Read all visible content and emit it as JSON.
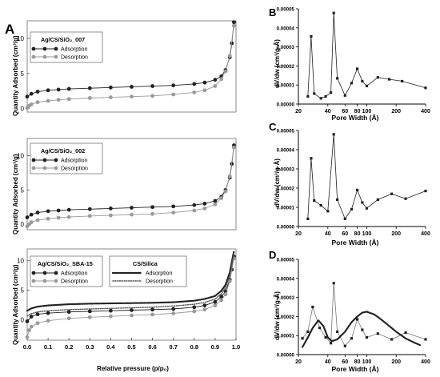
{
  "figure": {
    "panel_labels": {
      "A": "A",
      "B": "B",
      "C": "C",
      "D": "D"
    },
    "colors": {
      "adsorption": "#222222",
      "desorption": "#9a9a9a",
      "axis": "#000000",
      "frame": "#888888"
    }
  },
  "chart_data": [
    {
      "id": "A1",
      "type": "line",
      "ylabel": "Quantity Adsorbed (cm³/g)",
      "xlabel": "",
      "xlim": [
        0,
        1
      ],
      "ylim": [
        -0.5,
        12.5
      ],
      "yticks": [
        0,
        5,
        10
      ],
      "xticks": [],
      "legend": {
        "title": "Ag/CS/SiO₂_007",
        "placement": "top-left"
      },
      "series": [
        {
          "name": "Adsorption",
          "style": "filled",
          "x": [
            0.0,
            0.02,
            0.05,
            0.1,
            0.15,
            0.2,
            0.3,
            0.4,
            0.5,
            0.6,
            0.7,
            0.8,
            0.85,
            0.9,
            0.93,
            0.95,
            0.97,
            0.98,
            0.99
          ],
          "y": [
            1.7,
            2.1,
            2.4,
            2.6,
            2.7,
            2.8,
            2.9,
            3.0,
            3.1,
            3.2,
            3.3,
            3.5,
            3.7,
            4.1,
            4.6,
            5.5,
            7.3,
            9.3,
            12.3
          ]
        },
        {
          "name": "Desorption",
          "style": "gray",
          "x": [
            0.0,
            0.01,
            0.02,
            0.05,
            0.1,
            0.15,
            0.2,
            0.3,
            0.4,
            0.5,
            0.6,
            0.7,
            0.8,
            0.85,
            0.9,
            0.93,
            0.95,
            0.97,
            0.99
          ],
          "y": [
            0.1,
            0.4,
            0.6,
            0.9,
            1.1,
            1.25,
            1.35,
            1.5,
            1.6,
            1.7,
            1.8,
            2.0,
            2.3,
            2.6,
            3.2,
            4.2,
            5.3,
            7.5,
            11.8
          ]
        }
      ]
    },
    {
      "id": "A2",
      "type": "line",
      "ylabel": "Quantity Adsorbed (cm³/g)",
      "xlabel": "",
      "xlim": [
        0,
        1
      ],
      "ylim": [
        -0.8,
        12.5
      ],
      "yticks": [
        0,
        5,
        10
      ],
      "xticks": [],
      "legend": {
        "title": "Ag/CS/SiO₂_002",
        "placement": "top-left"
      },
      "series": [
        {
          "name": "Adsorption",
          "style": "filled",
          "x": [
            0.0,
            0.02,
            0.05,
            0.1,
            0.15,
            0.2,
            0.3,
            0.4,
            0.5,
            0.6,
            0.7,
            0.8,
            0.85,
            0.9,
            0.93,
            0.95,
            0.97,
            0.98,
            0.99
          ],
          "y": [
            1.0,
            1.4,
            1.7,
            1.9,
            2.0,
            2.1,
            2.2,
            2.3,
            2.4,
            2.5,
            2.6,
            2.8,
            3.0,
            3.4,
            4.0,
            5.0,
            6.8,
            8.8,
            11.5
          ]
        },
        {
          "name": "Desorption",
          "style": "gray",
          "x": [
            0.0,
            0.01,
            0.02,
            0.05,
            0.1,
            0.15,
            0.2,
            0.3,
            0.4,
            0.5,
            0.6,
            0.7,
            0.8,
            0.85,
            0.9,
            0.93,
            0.95,
            0.97,
            0.99
          ],
          "y": [
            -0.3,
            0.0,
            0.3,
            0.6,
            0.8,
            0.95,
            1.05,
            1.2,
            1.3,
            1.4,
            1.5,
            1.7,
            2.0,
            2.3,
            2.9,
            3.8,
            4.8,
            7.0,
            11.2
          ]
        }
      ]
    },
    {
      "id": "A3",
      "type": "line",
      "ylabel": "Quantity Adsorbed (cm³/g)",
      "xlabel": "Relative pressure (p/p₀)",
      "xlim": [
        0,
        1.0
      ],
      "ylim": [
        -3.5,
        12
      ],
      "yticks": [
        0,
        5,
        10
      ],
      "xticks": [
        "0.0",
        "0.1",
        "0.2",
        "0.3",
        "0.4",
        "0.5",
        "0.6",
        "0.7",
        "0.8",
        "0.9",
        "1.0"
      ],
      "legends": [
        {
          "title": "Ag/CS/SiO₂_SBA-15",
          "entries": [
            "Adsorption",
            "Desorption"
          ],
          "placement": "bottom-left"
        },
        {
          "title": "CS/Silica",
          "entries": [
            "Adsorption",
            "Desorption"
          ],
          "placement": "bottom-center"
        }
      ],
      "series": [
        {
          "name": "Adsorption",
          "group": "Ag/CS/SiO₂_SBA-15",
          "style": "filled",
          "x": [
            0.0,
            0.02,
            0.05,
            0.1,
            0.2,
            0.3,
            0.4,
            0.5,
            0.6,
            0.7,
            0.8,
            0.85,
            0.9,
            0.93,
            0.95,
            0.97,
            0.98,
            0.99
          ],
          "y": [
            -0.3,
            0.5,
            0.9,
            1.1,
            1.3,
            1.4,
            1.5,
            1.6,
            1.7,
            1.8,
            2.1,
            2.4,
            3.0,
            3.9,
            4.8,
            6.8,
            8.5,
            10.7
          ]
        },
        {
          "name": "Desorption",
          "group": "Ag/CS/SiO₂_SBA-15",
          "style": "gray",
          "x": [
            0.0,
            0.01,
            0.02,
            0.05,
            0.1,
            0.2,
            0.3,
            0.4,
            0.5,
            0.6,
            0.7,
            0.8,
            0.85,
            0.9,
            0.93,
            0.95,
            0.97,
            0.99
          ],
          "y": [
            -3.0,
            -1.8,
            -1.2,
            -0.6,
            -0.2,
            0.2,
            0.4,
            0.55,
            0.7,
            0.85,
            1.05,
            1.4,
            1.7,
            2.4,
            3.3,
            4.3,
            6.5,
            10.4
          ]
        },
        {
          "name": "Adsorption",
          "group": "CS/Silica",
          "style": "dotted-dense",
          "x": [
            0.0,
            0.02,
            0.05,
            0.1,
            0.2,
            0.3,
            0.4,
            0.5,
            0.6,
            0.7,
            0.8,
            0.85,
            0.9,
            0.93,
            0.95,
            0.97,
            0.98,
            0.99
          ],
          "y": [
            1.5,
            1.9,
            2.2,
            2.4,
            2.6,
            2.7,
            2.75,
            2.8,
            2.85,
            2.95,
            3.2,
            3.5,
            4.0,
            4.9,
            5.9,
            8.0,
            9.8,
            11.6
          ]
        },
        {
          "name": "Desorption",
          "group": "CS/Silica",
          "style": "dotted-light",
          "x": [
            0.0,
            0.02,
            0.05,
            0.1,
            0.2,
            0.3,
            0.4,
            0.5,
            0.6,
            0.7,
            0.8,
            0.85,
            0.9,
            0.93,
            0.95,
            0.97,
            0.99
          ],
          "y": [
            0.6,
            1.0,
            1.3,
            1.5,
            1.7,
            1.8,
            1.9,
            2.0,
            2.1,
            2.3,
            2.6,
            2.9,
            3.5,
            4.4,
            5.4,
            7.5,
            11.3
          ]
        }
      ]
    },
    {
      "id": "B",
      "type": "line",
      "ylabel": "dV/dw (cm³/g·Å)",
      "xlabel": "Pore Width (Å)",
      "xscale": "log",
      "xlim": [
        20,
        400
      ],
      "ylim": [
        0,
        5e-05
      ],
      "yticks": [
        "0.00000",
        "0.00001",
        "0.00002",
        "0.00003",
        "0.00004",
        "0.00005"
      ],
      "xticks": [
        "20",
        "40",
        "60",
        "80",
        "100",
        "200",
        "400"
      ],
      "series": [
        {
          "name": "",
          "style": "black-markers",
          "x": [
            25,
            27,
            29,
            34,
            38,
            43,
            46,
            50,
            60,
            70,
            80,
            90,
            100,
            130,
            170,
            230,
            400
          ],
          "y": [
            4e-06,
            3.55e-05,
            5.5e-06,
            3e-06,
            4e-06,
            6e-06,
            4.78e-05,
            1.35e-05,
            4.5e-06,
            1.1e-05,
            1.85e-05,
            1.2e-05,
            9.5e-06,
            1.4e-05,
            1.3e-05,
            1.2e-05,
            8.5e-06
          ]
        }
      ]
    },
    {
      "id": "C",
      "type": "line",
      "ylabel": "dV/dw (cm³/g·Å)",
      "xlabel": "Pore Width (Å)",
      "xscale": "log",
      "xlim": [
        20,
        400
      ],
      "ylim": [
        0,
        5e-05
      ],
      "yticks": [
        "0.00000",
        "0.00001",
        "0.00002",
        "0.00003",
        "0.00004",
        "0.00005"
      ],
      "xticks": [
        "20",
        "40",
        "60",
        "80",
        "100",
        "200",
        "400"
      ],
      "series": [
        {
          "name": "",
          "style": "black-markers",
          "x": [
            25,
            27,
            29,
            34,
            40,
            46,
            50,
            60,
            70,
            80,
            90,
            100,
            130,
            180,
            250,
            400
          ],
          "y": [
            4e-06,
            3.55e-05,
            1.35e-05,
            1.1e-05,
            8e-06,
            4.8e-05,
            1.4e-05,
            4e-06,
            9e-06,
            1.9e-05,
            1.25e-05,
            9.5e-06,
            1.4e-05,
            1.7e-05,
            1.45e-05,
            1.85e-05
          ]
        }
      ]
    },
    {
      "id": "D",
      "type": "line",
      "ylabel": "dV/dw (cm³/g·Å)",
      "xlabel": "Pore Width (Å)",
      "xscale": "log",
      "xlim": [
        20,
        400
      ],
      "ylim": [
        0,
        5e-05
      ],
      "yticks": [
        "0.00000",
        "0.00001",
        "0.00002",
        "0.00003",
        "0.00004",
        "0.00005"
      ],
      "xticks": [
        "20",
        "40",
        "60",
        "80",
        "100",
        "200",
        "400"
      ],
      "series": [
        {
          "name": "",
          "style": "gray-markers",
          "x": [
            22,
            25,
            28,
            33,
            38,
            43,
            46,
            50,
            60,
            70,
            80,
            90,
            100,
            130,
            180,
            250,
            400
          ],
          "y": [
            8.5e-06,
            1.2e-05,
            2.5e-05,
            1.4e-05,
            9e-06,
            6e-06,
            3.75e-05,
            1.2e-05,
            4.5e-06,
            8.5e-06,
            1.85e-05,
            1.3e-05,
            9e-06,
            1.1e-05,
            8e-06,
            1.15e-05,
            8e-06
          ]
        },
        {
          "name": "",
          "style": "dotted-dense",
          "x": [
            22,
            25,
            28,
            32,
            36,
            40,
            44,
            50,
            60,
            70,
            80,
            90,
            100,
            120,
            140,
            170,
            200,
            250,
            300,
            350
          ],
          "y": [
            4e-06,
            9e-06,
            1.4e-05,
            1.8e-05,
            1.5e-05,
            9e-06,
            7e-06,
            8e-06,
            1.2e-05,
            1.7e-05,
            2e-05,
            2.2e-05,
            2.25e-05,
            2.1e-05,
            1.85e-05,
            1.5e-05,
            1.2e-05,
            8.5e-06,
            6.5e-06,
            5e-06
          ]
        }
      ]
    }
  ]
}
